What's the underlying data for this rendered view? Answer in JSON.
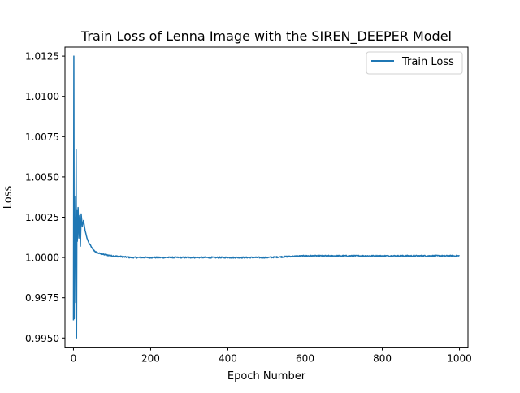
{
  "chart_data": {
    "type": "line",
    "title": "Train Loss of Lenna Image with the SIREN_DEEPER Model",
    "xlabel": "Epoch Number",
    "ylabel": "Loss",
    "xlim": [
      -22,
      1022
    ],
    "ylim": [
      0.99443,
      1.01306
    ],
    "x_ticks": [
      0,
      200,
      400,
      600,
      800,
      1000
    ],
    "x_tick_labels": [
      "0",
      "200",
      "400",
      "600",
      "800",
      "1000"
    ],
    "y_ticks": [
      0.995,
      0.9975,
      1.0,
      1.0025,
      1.005,
      1.0075,
      1.01,
      1.0125
    ],
    "y_tick_labels": [
      "0.9950",
      "0.9975",
      "1.0000",
      "1.0025",
      "1.0050",
      "1.0075",
      "1.0100",
      "1.0125"
    ],
    "grid": false,
    "legend_position": "top-right",
    "series": [
      {
        "name": "Train Loss",
        "color": "#1f77b4",
        "key_points": [
          {
            "x": 0,
            "y": 0.9961
          },
          {
            "x": 1,
            "y": 1.0125
          },
          {
            "x": 2,
            "y": 0.9962
          },
          {
            "x": 3,
            "y": 1.0038
          },
          {
            "x": 4,
            "y": 0.9998
          },
          {
            "x": 5,
            "y": 1.0025
          },
          {
            "x": 6,
            "y": 0.9972
          },
          {
            "x": 7,
            "y": 1.0067
          },
          {
            "x": 8,
            "y": 0.995
          },
          {
            "x": 9,
            "y": 1.0029
          },
          {
            "x": 10,
            "y": 1.001
          },
          {
            "x": 12,
            "y": 1.0031
          },
          {
            "x": 14,
            "y": 1.0012
          },
          {
            "x": 16,
            "y": 1.0026
          },
          {
            "x": 18,
            "y": 1.0007
          },
          {
            "x": 20,
            "y": 1.0027
          },
          {
            "x": 23,
            "y": 1.0019
          },
          {
            "x": 26,
            "y": 1.0023
          },
          {
            "x": 30,
            "y": 1.0017
          },
          {
            "x": 35,
            "y": 1.0012
          },
          {
            "x": 40,
            "y": 1.0009
          },
          {
            "x": 50,
            "y": 1.0005
          },
          {
            "x": 60,
            "y": 1.0003
          },
          {
            "x": 75,
            "y": 1.0002
          },
          {
            "x": 100,
            "y": 1.0001
          },
          {
            "x": 150,
            "y": 1.0
          },
          {
            "x": 200,
            "y": 1.0
          },
          {
            "x": 300,
            "y": 1.0
          },
          {
            "x": 400,
            "y": 1.0
          },
          {
            "x": 500,
            "y": 1.0
          },
          {
            "x": 600,
            "y": 1.0001
          },
          {
            "x": 700,
            "y": 1.0001
          },
          {
            "x": 800,
            "y": 1.0001
          },
          {
            "x": 900,
            "y": 1.0001
          },
          {
            "x": 1000,
            "y": 1.0001
          }
        ],
        "noise_amplitude": 4e-05
      }
    ]
  }
}
